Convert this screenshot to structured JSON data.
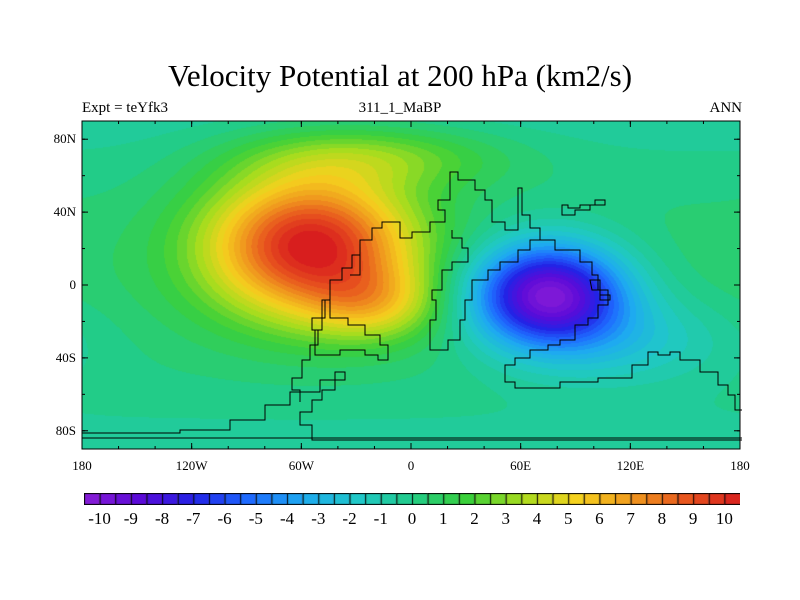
{
  "chart_data": {
    "type": "heatmap",
    "title": "Velocity Potential at 200 hPa (km2/s)",
    "subtitle_left": "Expt = teYfk3",
    "subtitle_center": "311_1_MaBP",
    "subtitle_right": "ANN",
    "xlabel": "",
    "ylabel": "",
    "xlim": [
      -180,
      180
    ],
    "ylim": [
      -90,
      90
    ],
    "x_ticks": [
      {
        "value": -180,
        "label": "180"
      },
      {
        "value": -120,
        "label": "120W"
      },
      {
        "value": -60,
        "label": "60W"
      },
      {
        "value": 0,
        "label": "0"
      },
      {
        "value": 60,
        "label": "60E"
      },
      {
        "value": 120,
        "label": "120E"
      },
      {
        "value": 180,
        "label": "180"
      }
    ],
    "y_ticks": [
      {
        "value": 80,
        "label": "80N"
      },
      {
        "value": 40,
        "label": "40N"
      },
      {
        "value": 0,
        "label": "0"
      },
      {
        "value": -40,
        "label": "40S"
      },
      {
        "value": -80,
        "label": "80S"
      }
    ],
    "colorbar": {
      "min": -10.5,
      "max": 10.5,
      "step": 0.5,
      "tick_labels": [
        "-10",
        "-9",
        "-8",
        "-7",
        "-6",
        "-5",
        "-4",
        "-3",
        "-2",
        "-1",
        "0",
        "1",
        "2",
        "3",
        "4",
        "5",
        "6",
        "7",
        "8",
        "9",
        "10"
      ]
    },
    "field_centers": [
      {
        "name": "positive-max",
        "lon": -55,
        "lat": 22,
        "value": 10.2
      },
      {
        "name": "negative-min",
        "lon": 75,
        "lat": -5,
        "value": -10.3
      }
    ],
    "colors": {
      "colormap": [
        "#8a1ed6",
        "#5b0ad8",
        "#2323e6",
        "#1e6aff",
        "#1eaaf0",
        "#20c8c8",
        "#22cc88",
        "#3ad03a",
        "#a8dc1e",
        "#f5d21e",
        "#f09a1e",
        "#e8561e",
        "#d81e1e"
      ]
    }
  }
}
